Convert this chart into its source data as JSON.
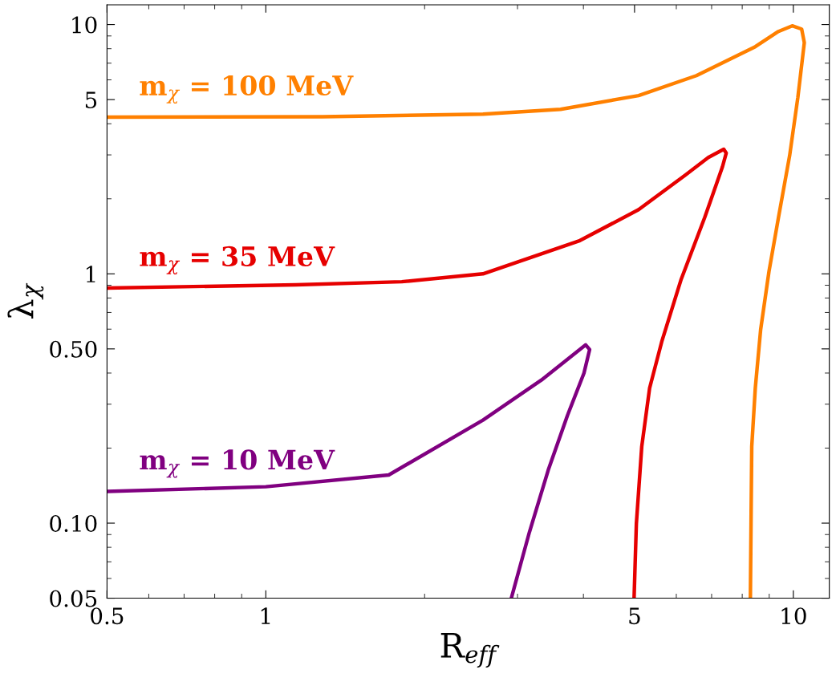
{
  "chart_data": {
    "type": "line",
    "xlabel": "R$_{eff}$",
    "ylabel": "λ$_{χ}$",
    "log": "xy",
    "grid": false,
    "legend": false,
    "marker": "none",
    "line_style": "solid",
    "xlim": [
      0.5,
      11.7
    ],
    "ylim": [
      0.05,
      12
    ],
    "xticks": [
      0.5,
      1,
      5,
      10
    ],
    "yticks": [
      0.05,
      {
        "value": 0.1,
        "label": "0.10"
      },
      {
        "value": 0.5,
        "label": "0.50"
      },
      1,
      5,
      10
    ],
    "series": [
      {
        "name": "m$_{χ}$ = 100 MeV",
        "color": "#ff8000",
        "x": [
          0.5,
          1.28,
          2.58,
          3.62,
          5.09,
          6.55,
          8.47,
          9.37,
          9.95,
          10.37,
          10.49,
          10.2,
          9.84,
          9.37,
          8.99,
          8.67,
          8.47,
          8.34,
          8.32,
          8.29
        ],
        "values": [
          4.25,
          4.27,
          4.37,
          4.57,
          5.19,
          6.24,
          8.15,
          9.38,
          9.88,
          9.59,
          8.46,
          5.11,
          2.98,
          1.68,
          1.02,
          0.597,
          0.348,
          0.203,
          0.119,
          0.05
        ]
      },
      {
        "name": "m$_{χ}$ = 35 MeV",
        "color": "#e60000",
        "x": [
          0.5,
          1.14,
          1.81,
          2.58,
          3.94,
          5.09,
          6.24,
          6.9,
          7.38,
          7.46,
          7.34,
          6.79,
          6.13,
          5.63,
          5.34,
          5.16,
          5.04,
          4.99
        ],
        "values": [
          0.877,
          0.904,
          0.93,
          1.0,
          1.36,
          1.81,
          2.49,
          2.93,
          3.16,
          3.05,
          2.69,
          1.68,
          0.952,
          0.534,
          0.348,
          0.203,
          0.0995,
          0.05
        ]
      },
      {
        "name": "m$_{χ}$ = 10 MeV",
        "color": "#800080",
        "x": [
          0.5,
          1.0,
          1.71,
          2.58,
          3.33,
          4.04,
          4.11,
          4.01,
          3.73,
          3.43,
          3.16,
          2.92
        ],
        "values": [
          0.134,
          0.14,
          0.156,
          0.259,
          0.375,
          0.519,
          0.497,
          0.4,
          0.27,
          0.163,
          0.092,
          0.05
        ]
      }
    ]
  }
}
